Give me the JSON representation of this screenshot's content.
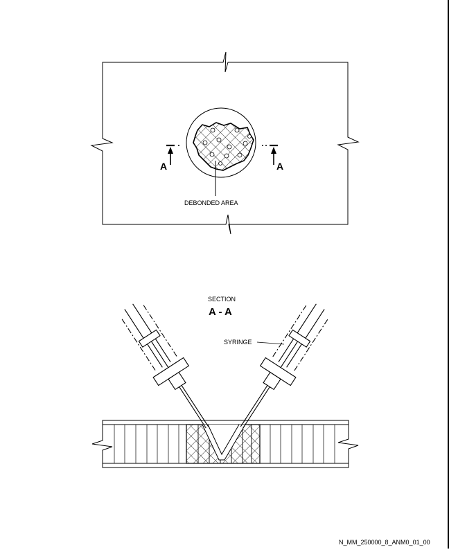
{
  "top_view": {
    "callout_label": "DEBONDED AREA",
    "section_marker_left": "A",
    "section_marker_right": "A"
  },
  "section_view": {
    "title_small": "SECTION",
    "title_large": "A - A",
    "syringe_label": "SYRINGE"
  },
  "figure_id": "N_MM_250000_8_ANM0_01_00"
}
